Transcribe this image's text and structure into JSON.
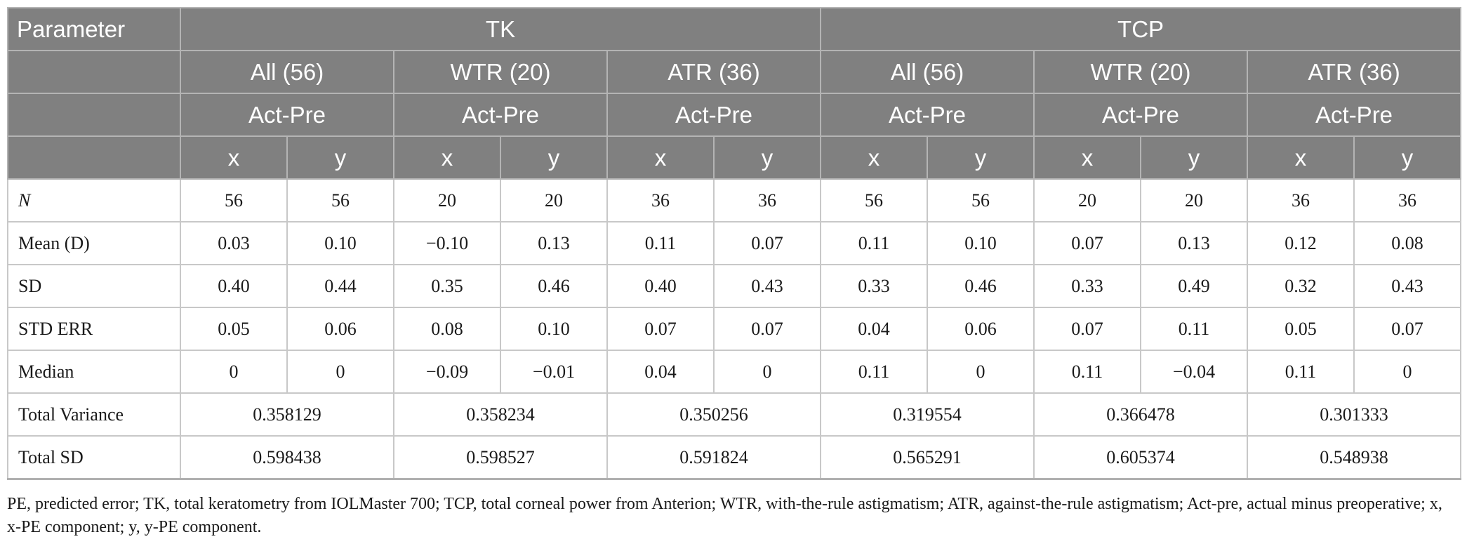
{
  "header": {
    "parameter": "Parameter",
    "groups": [
      "TK",
      "TCP"
    ],
    "subgroups": [
      "All (56)",
      "WTR (20)",
      "ATR (36)",
      "All (56)",
      "WTR (20)",
      "ATR (36)"
    ],
    "comparison": [
      "Act-Pre",
      "Act-Pre",
      "Act-Pre",
      "Act-Pre",
      "Act-Pre",
      "Act-Pre"
    ],
    "components": [
      "x",
      "y",
      "x",
      "y",
      "x",
      "y",
      "x",
      "y",
      "x",
      "y",
      "x",
      "y"
    ]
  },
  "rows": [
    {
      "label": "N",
      "values": [
        "56",
        "56",
        "20",
        "20",
        "36",
        "36",
        "56",
        "56",
        "20",
        "20",
        "36",
        "36"
      ]
    },
    {
      "label": "Mean (D)",
      "values": [
        "0.03",
        "0.10",
        "−0.10",
        "0.13",
        "0.11",
        "0.07",
        "0.11",
        "0.10",
        "0.07",
        "0.13",
        "0.12",
        "0.08"
      ]
    },
    {
      "label": "SD",
      "values": [
        "0.40",
        "0.44",
        "0.35",
        "0.46",
        "0.40",
        "0.43",
        "0.33",
        "0.46",
        "0.33",
        "0.49",
        "0.32",
        "0.43"
      ]
    },
    {
      "label": "STD ERR",
      "values": [
        "0.05",
        "0.06",
        "0.08",
        "0.10",
        "0.07",
        "0.07",
        "0.04",
        "0.06",
        "0.07",
        "0.11",
        "0.05",
        "0.07"
      ]
    },
    {
      "label": "Median",
      "values": [
        "0",
        "0",
        "−0.09",
        "−0.01",
        "0.04",
        "0",
        "0.11",
        "0",
        "0.11",
        "−0.04",
        "0.11",
        "0"
      ]
    }
  ],
  "merged_rows": [
    {
      "label": "Total Variance",
      "values": [
        "0.358129",
        "0.358234",
        "0.350256",
        "0.319554",
        "0.366478",
        "0.301333"
      ]
    },
    {
      "label": "Total SD",
      "values": [
        "0.598438",
        "0.598527",
        "0.591824",
        "0.565291",
        "0.605374",
        "0.548938"
      ]
    }
  ],
  "footnote": "PE, predicted error; TK, total keratometry from IOLMaster 700; TCP, total corneal power from Anterion; WTR, with-the-rule astigmatism; ATR, against-the-rule astigmatism; Act-pre, actual minus preoperative; x, x-PE component; y, y-PE component."
}
